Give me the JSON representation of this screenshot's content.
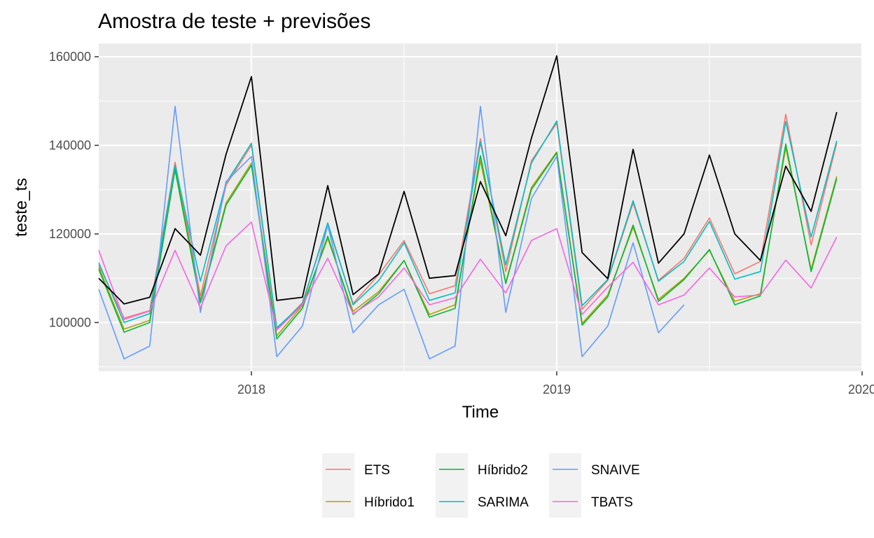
{
  "chart_data": {
    "type": "line",
    "title": "Amostra de teste + previsões",
    "xlabel": "Time",
    "ylabel": "teste_ts",
    "xlim": [
      2017.5,
      2020
    ],
    "ylim": [
      89000,
      163000
    ],
    "x_ticks": [
      2018,
      2019,
      2020
    ],
    "y_ticks": [
      100000,
      120000,
      140000,
      160000
    ],
    "x_tick_labels": [
      "2018",
      "2019",
      "2020"
    ],
    "y_tick_labels": [
      "100000",
      "120000",
      "140000",
      "160000"
    ],
    "grid": true,
    "legend_position": "bottom",
    "x": [
      2017.5,
      2017.583,
      2017.667,
      2017.75,
      2017.833,
      2017.917,
      2018.0,
      2018.083,
      2018.167,
      2018.25,
      2018.333,
      2018.417,
      2018.5,
      2018.583,
      2018.667,
      2018.75,
      2018.833,
      2018.917,
      2019.0,
      2019.083,
      2019.167,
      2019.25,
      2019.333,
      2019.417,
      2019.5,
      2019.583,
      2019.667,
      2019.75,
      2019.833,
      2019.917
    ],
    "actual": {
      "color": "#000000",
      "values": [
        110000,
        104200,
        105700,
        121200,
        115200,
        138000,
        155500,
        105000,
        105700,
        130900,
        106300,
        111000,
        129600,
        110000,
        110600,
        131800,
        119600,
        141600,
        160200,
        115800,
        109900,
        139100,
        113400,
        120000,
        137800,
        120000,
        114000,
        135300,
        125100,
        147500
      ]
    },
    "series": [
      {
        "name": "ETS",
        "color": "#F8766D",
        "values": [
          113000,
          101000,
          102700,
          136200,
          106000,
          131000,
          140000,
          98500,
          104500,
          122000,
          104300,
          110800,
          118500,
          106500,
          108300,
          141500,
          111500,
          136500,
          145000,
          103000,
          109500,
          127000,
          109500,
          114500,
          123600,
          111000,
          113800,
          147000,
          117500,
          140500
        ]
      },
      {
        "name": "Híbrido1",
        "color": "#B79F00",
        "values": [
          112500,
          98500,
          100500,
          135000,
          105000,
          127000,
          136000,
          97000,
          103800,
          119000,
          102500,
          107000,
          114000,
          101800,
          104000,
          136500,
          109000,
          130500,
          138500,
          99800,
          106200,
          121500,
          105200,
          110000,
          116300,
          104800,
          106500,
          139500,
          112000,
          133000
        ]
      },
      {
        "name": "Híbrido2",
        "color": "#00BA38",
        "values": [
          112000,
          97800,
          100000,
          134500,
          104500,
          126500,
          135500,
          96300,
          103200,
          119500,
          101800,
          106500,
          114000,
          101200,
          103200,
          137700,
          108800,
          130000,
          138300,
          99400,
          105800,
          122000,
          104800,
          109700,
          116500,
          104000,
          106000,
          140300,
          111500,
          132500
        ]
      },
      {
        "name": "SARIMA",
        "color": "#00BFC4",
        "values": [
          113500,
          100000,
          102000,
          135500,
          109300,
          131500,
          140500,
          98800,
          104200,
          122500,
          104000,
          109500,
          118000,
          105000,
          106700,
          140700,
          113000,
          136000,
          145500,
          103800,
          109700,
          127500,
          109300,
          113800,
          122800,
          109800,
          111500,
          145400,
          119300,
          141000
        ]
      },
      {
        "name": "SNAIVE",
        "color": "#619CFF",
        "values": [
          107500,
          91800,
          94700,
          148800,
          102300,
          131800,
          137500,
          92300,
          99200,
          122000,
          97700,
          104000,
          107500,
          91800,
          94700,
          148800,
          102300,
          128000,
          137500,
          92300,
          99200,
          118000,
          97700,
          104000,
          null,
          null,
          null,
          null,
          null,
          null
        ]
      },
      {
        "name": "TBATS",
        "color": "#F564E3",
        "values": [
          116300,
          100700,
          102600,
          116300,
          103300,
          117300,
          122700,
          98300,
          104000,
          114500,
          102000,
          105800,
          112300,
          104000,
          105600,
          114300,
          106700,
          118500,
          121200,
          101800,
          108000,
          113600,
          104000,
          106200,
          112300,
          105800,
          106200,
          114100,
          107800,
          119300
        ]
      }
    ]
  }
}
